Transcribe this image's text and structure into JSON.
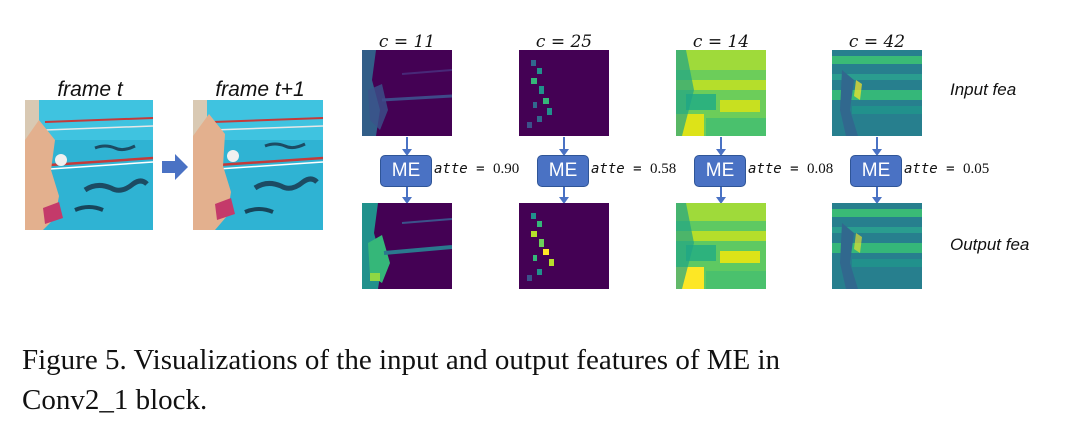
{
  "frames": [
    {
      "label": "frame t"
    },
    {
      "label": "frame t+1"
    }
  ],
  "columns": [
    {
      "header": "c = 11",
      "atte_label": "atte",
      "atte_eq": " = ",
      "atte_value": "0.90",
      "module": "ME"
    },
    {
      "header": "c = 25",
      "atte_label": "atte",
      "atte_eq": " = ",
      "atte_value": "0.58",
      "module": "ME"
    },
    {
      "header": "c = 14",
      "atte_label": "atte",
      "atte_eq": " = ",
      "atte_value": "0.08",
      "module": "ME"
    },
    {
      "header": "c = 42",
      "atte_label": "atte",
      "atte_eq": " = ",
      "atte_value": "0.05",
      "module": "ME"
    }
  ],
  "row_labels": {
    "input": "Input fea",
    "output": "Output fea"
  },
  "caption": {
    "line1": "Figure 5. Visualizations of the input and output features of ME in",
    "line2": "Conv2_1 block."
  },
  "colors": {
    "me_fill": "#4a72c4",
    "viridis_dark": "#440154",
    "viridis_mid": "#21918c",
    "viridis_light": "#fde725",
    "pool_water": "#2fb3d3"
  }
}
